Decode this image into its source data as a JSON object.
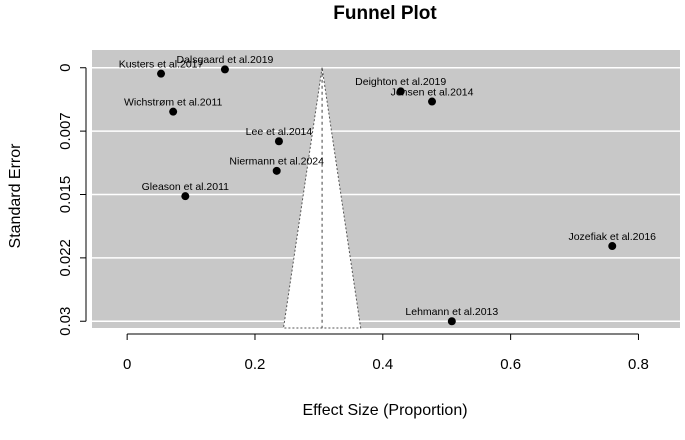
{
  "chart_data": {
    "type": "funnel",
    "title": "Funnel Plot",
    "x_label": "Effect Size (Proportion)",
    "y_label": "Standard Error",
    "xlim": [
      -0.055,
      0.865
    ],
    "ylim": [
      -0.0021,
      0.0308
    ],
    "y_reversed": true,
    "xticks": [
      0,
      0.2,
      0.4,
      0.6,
      0.8
    ],
    "yticks": [
      0,
      {
        "value": 0.0075,
        "label": "0.007"
      },
      0.015,
      {
        "value": 0.0225,
        "label": "0.022"
      },
      0.03
    ],
    "grid": true,
    "color": "#000000",
    "background": "#c8c8c8",
    "funnel": {
      "center": 0.305,
      "z": 1.96
    },
    "points": [
      {
        "label": "Kusters et al.2017",
        "x": 0.053,
        "y": 0.0007
      },
      {
        "label": "Dalsgaard et al.2019",
        "x": 0.153,
        "y": 0.0002
      },
      {
        "label": "Wichstrøm et al.2011",
        "x": 0.072,
        "y": 0.0052
      },
      {
        "label": "Lee et al.2014",
        "x": 0.2375,
        "y": 0.0087
      },
      {
        "label": "Niermann et al.2024",
        "x": 0.234,
        "y": 0.0122
      },
      {
        "label": "Gleason et al.2011",
        "x": 0.091,
        "y": 0.0152
      },
      {
        "label": "Deighton et al.2019",
        "x": 0.428,
        "y": 0.0028
      },
      {
        "label": "Jensen et al.2014",
        "x": 0.477,
        "y": 0.004
      },
      {
        "label": "Jozefiak et al.2016",
        "x": 0.759,
        "y": 0.0211
      },
      {
        "label": "Lehmann et al.2013",
        "x": 0.508,
        "y": 0.03
      }
    ]
  }
}
